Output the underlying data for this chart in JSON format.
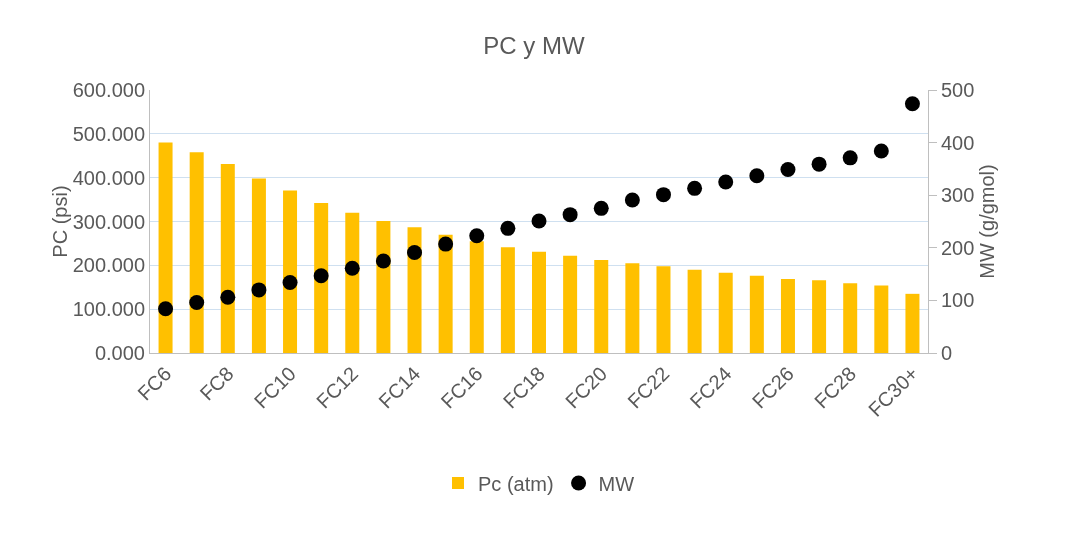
{
  "chart_data": {
    "type": "bar",
    "title": "PC y MW",
    "ylabel": "PC (psi)",
    "y2label": "MW (g/gmol)",
    "categories": [
      "FC6",
      null,
      "FC8",
      null,
      "FC10",
      null,
      "FC12",
      null,
      "FC14",
      null,
      "FC16",
      null,
      "FC18",
      null,
      "FC20",
      null,
      "FC22",
      null,
      "FC24",
      null,
      "FC26",
      null,
      "FC28",
      null,
      "FC30+"
    ],
    "series": [
      {
        "name": "Pc (atm)",
        "color": "#ffc000",
        "values": [
          480,
          458,
          431,
          398,
          371,
          342,
          320,
          301,
          287,
          270,
          255,
          241,
          231,
          222,
          212,
          205,
          198,
          190,
          183,
          176,
          169,
          166,
          159,
          154,
          135
        ]
      },
      {
        "name": "MW",
        "type": "scatter",
        "axis": "y2",
        "color": "#000000",
        "marker": "circle",
        "values": [
          84,
          96,
          106,
          120,
          134,
          147,
          161,
          175,
          191,
          207,
          223,
          237,
          251,
          263,
          275,
          291,
          301,
          313,
          325,
          337,
          349,
          359,
          371,
          384,
          474
        ]
      }
    ],
    "ylim": [
      0,
      600
    ],
    "yticks": [
      {
        "value": 0,
        "label": "0.000"
      },
      {
        "value": 100,
        "label": "100.000"
      },
      {
        "value": 200,
        "label": "200.000"
      },
      {
        "value": 300,
        "label": "300.000"
      },
      {
        "value": 400,
        "label": "400.000"
      },
      {
        "value": 500,
        "label": "500.000"
      },
      {
        "value": 600,
        "label": "600.000"
      }
    ],
    "y2lim": [
      0,
      500
    ],
    "y2ticks": [
      0,
      100,
      200,
      300,
      400,
      500
    ],
    "grid": "y",
    "legend": "bottom"
  }
}
